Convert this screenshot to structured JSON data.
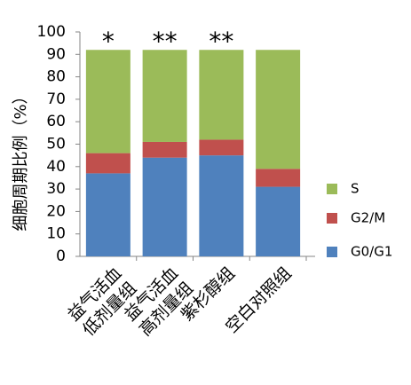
{
  "chart_data": {
    "type": "stacked_bar",
    "y_label": "细胞周期比例（%）",
    "categories": [
      [
        "益气活血",
        "低剂量组"
      ],
      [
        "益气活血",
        "高剂量组"
      ],
      [
        "紫杉醇组"
      ],
      [
        "空白对照组"
      ]
    ],
    "annotations": [
      "*",
      "**",
      "**",
      null
    ],
    "series": [
      {
        "name": "G0/G1",
        "color": "#4f81bd",
        "values": [
          37,
          44,
          45,
          31
        ]
      },
      {
        "name": "G2/M",
        "color": "#c0504d",
        "values": [
          9,
          7,
          7,
          8
        ]
      },
      {
        "name": "S",
        "color": "#9bbb59",
        "values": [
          46,
          41,
          40,
          53
        ]
      }
    ],
    "ylim": [
      0,
      100
    ],
    "yticks": [
      0,
      10,
      20,
      30,
      40,
      50,
      60,
      70,
      80,
      90,
      100
    ]
  }
}
